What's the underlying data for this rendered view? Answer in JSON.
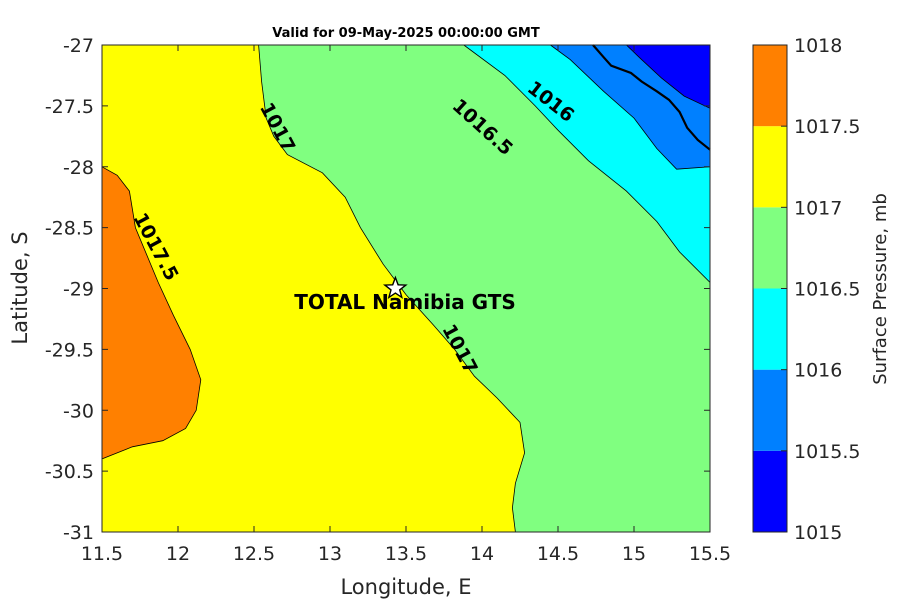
{
  "chart_data": {
    "type": "contour",
    "title": "Valid for 09-May-2025 00:00:00 GMT",
    "xlabel": "Longitude, E",
    "ylabel": "Latitude, S",
    "xlim": [
      11.5,
      15.5
    ],
    "ylim": [
      -31,
      -27
    ],
    "x_ticks": [
      "11.5",
      "12",
      "12.5",
      "13",
      "13.5",
      "14",
      "14.5",
      "15",
      "15.5"
    ],
    "y_ticks": [
      "-27",
      "-27.5",
      "-28",
      "-28.5",
      "-29",
      "-29.5",
      "-30",
      "-30.5",
      "-31"
    ],
    "colorbar": {
      "label": "Surface Pressure, mb",
      "ticks": [
        "1018",
        "1017.5",
        "1017",
        "1016.5",
        "1016",
        "1015.5",
        "1015"
      ],
      "levels": [
        1015,
        1015.5,
        1016,
        1016.5,
        1017,
        1017.5,
        1018
      ],
      "colors": [
        "#0000ff",
        "#0080ff",
        "#00ffff",
        "#80ff80",
        "#ffff00",
        "#ff8000",
        "#ff0000"
      ]
    },
    "regions": [
      {
        "level": "1017.5",
        "color": "#ff8000",
        "points": [
          [
            11.5,
            -28
          ],
          [
            11.6,
            -28.07
          ],
          [
            11.68,
            -28.2
          ],
          [
            11.72,
            -28.5
          ],
          [
            11.87,
            -28.95
          ],
          [
            11.97,
            -29.22
          ],
          [
            12.08,
            -29.5
          ],
          [
            12.15,
            -29.75
          ],
          [
            12.12,
            -30.0
          ],
          [
            12.05,
            -30.15
          ],
          [
            11.9,
            -30.25
          ],
          [
            11.7,
            -30.3
          ],
          [
            11.5,
            -30.4
          ]
        ]
      },
      {
        "level": "1016.5",
        "color": "#80ff80",
        "points": [
          [
            12.53,
            -27
          ],
          [
            12.55,
            -27.3
          ],
          [
            12.58,
            -27.6
          ],
          [
            12.63,
            -27.75
          ],
          [
            12.72,
            -27.9
          ],
          [
            12.95,
            -28.05
          ],
          [
            13.1,
            -28.25
          ],
          [
            13.2,
            -28.5
          ],
          [
            13.35,
            -28.8
          ],
          [
            13.5,
            -29.05
          ],
          [
            13.68,
            -29.3
          ],
          [
            13.82,
            -29.5
          ],
          [
            13.95,
            -29.72
          ],
          [
            14.1,
            -29.9
          ],
          [
            14.25,
            -30.1
          ],
          [
            14.28,
            -30.35
          ],
          [
            14.22,
            -30.6
          ],
          [
            14.2,
            -30.8
          ],
          [
            14.22,
            -31
          ],
          [
            15.5,
            -31
          ],
          [
            15.5,
            -27
          ]
        ]
      },
      {
        "level": "1016",
        "color": "#00ffff",
        "points": [
          [
            13.88,
            -27
          ],
          [
            14.15,
            -27.25
          ],
          [
            14.35,
            -27.5
          ],
          [
            14.5,
            -27.7
          ],
          [
            14.7,
            -27.95
          ],
          [
            14.95,
            -28.2
          ],
          [
            15.15,
            -28.45
          ],
          [
            15.3,
            -28.7
          ],
          [
            15.5,
            -28.95
          ],
          [
            15.5,
            -27
          ]
        ]
      },
      {
        "level": "1015.5",
        "color": "#0080ff",
        "points": [
          [
            14.45,
            -27
          ],
          [
            14.58,
            -27.12
          ],
          [
            14.8,
            -27.38
          ],
          [
            15.0,
            -27.6
          ],
          [
            15.15,
            -27.85
          ],
          [
            15.28,
            -28.02
          ],
          [
            15.5,
            -28.0
          ],
          [
            15.5,
            -27
          ]
        ]
      },
      {
        "level": "1015",
        "color": "#0000ff",
        "points": [
          [
            14.95,
            -27
          ],
          [
            15.05,
            -27.12
          ],
          [
            15.18,
            -27.27
          ],
          [
            15.33,
            -27.42
          ],
          [
            15.5,
            -27.52
          ],
          [
            15.5,
            -27
          ]
        ]
      }
    ],
    "contour_labels": [
      {
        "text": "1017.5",
        "x": 11.85,
        "y": -28.66,
        "angle": 62
      },
      {
        "text": "1017",
        "x": 12.65,
        "y": -27.68,
        "angle": 62
      },
      {
        "text": "1017",
        "x": 13.85,
        "y": -29.5,
        "angle": 62
      },
      {
        "text": "1016.5",
        "x": 14.0,
        "y": -27.68,
        "angle": 42
      },
      {
        "text": "1016",
        "x": 14.45,
        "y": -27.47,
        "angle": 38
      }
    ],
    "coastline": [
      [
        14.73,
        -27
      ],
      [
        14.8,
        -27.1
      ],
      [
        14.85,
        -27.17
      ],
      [
        14.98,
        -27.23
      ],
      [
        15.05,
        -27.3
      ],
      [
        15.15,
        -27.38
      ],
      [
        15.23,
        -27.45
      ],
      [
        15.3,
        -27.55
      ],
      [
        15.35,
        -27.68
      ],
      [
        15.42,
        -27.78
      ],
      [
        15.48,
        -27.84
      ],
      [
        15.5,
        -27.86
      ]
    ],
    "site": {
      "label": "TOTAL Namibia GTS",
      "lon": 13.43,
      "lat": -29.0
    }
  }
}
